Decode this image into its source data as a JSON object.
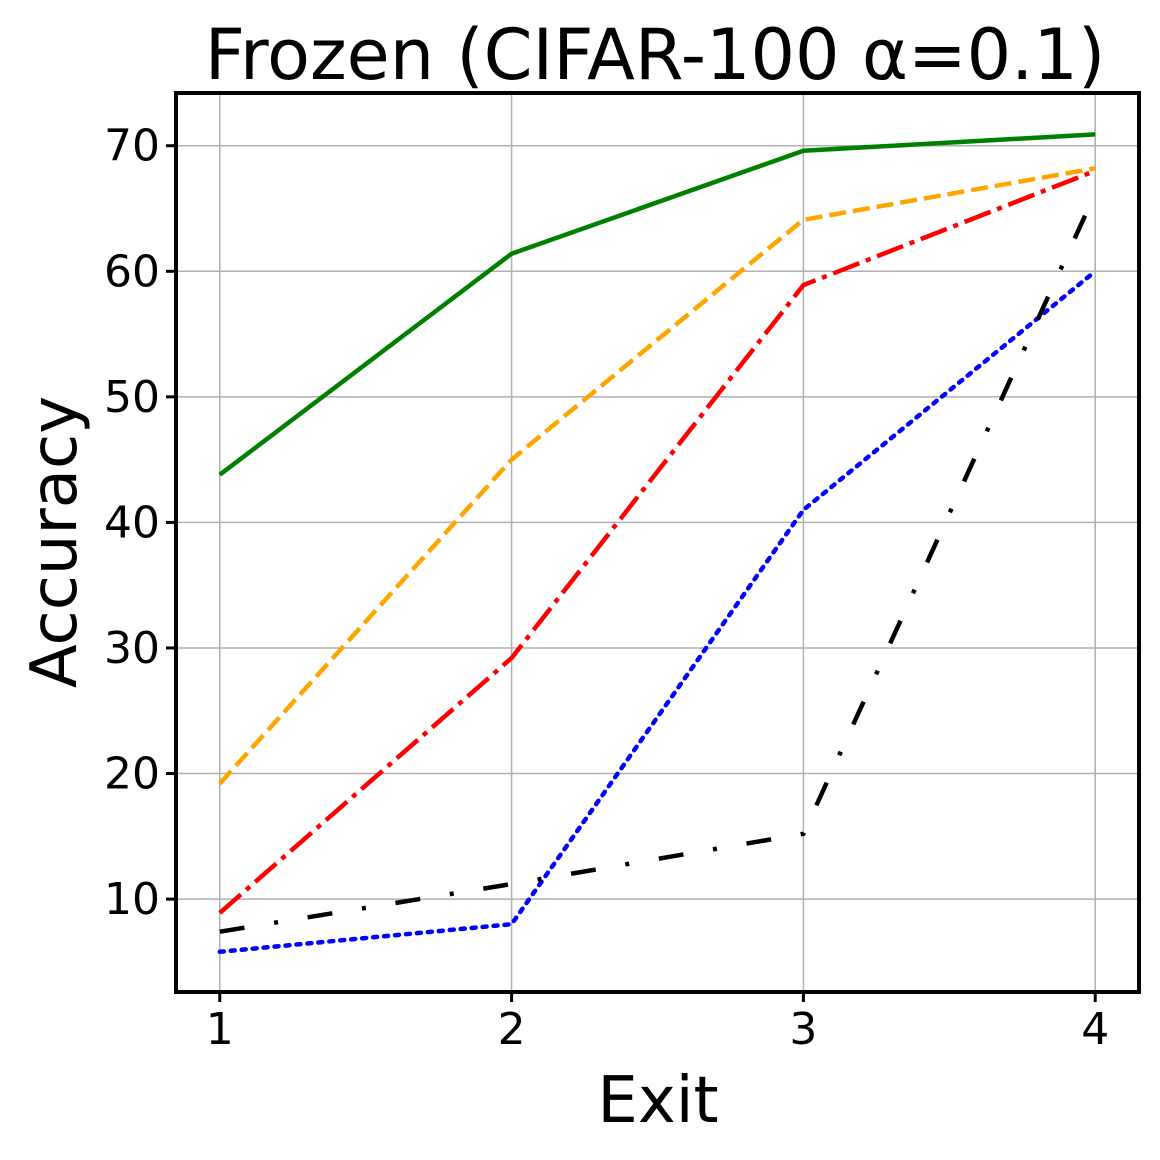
{
  "chart_data": {
    "type": "line",
    "title": "Frozen (CIFAR-100 α=0.1)",
    "xlabel": "Exit",
    "ylabel": "Accuracy",
    "x": [
      1,
      2,
      3,
      4
    ],
    "x_ticks": [
      "1",
      "2",
      "3",
      "4"
    ],
    "y_ticks": [
      "10",
      "20",
      "30",
      "40",
      "50",
      "60",
      "70"
    ],
    "xlim": [
      0.85,
      4.15
    ],
    "ylim": [
      2.6,
      74.2
    ],
    "grid": true,
    "series": [
      {
        "color": "#008000",
        "style": "solid",
        "values": [
          43.8,
          61.4,
          69.6,
          70.9
        ]
      },
      {
        "color": "#FFA500",
        "style": "dashed",
        "values": [
          19.2,
          45.0,
          64.1,
          68.2
        ]
      },
      {
        "color": "#FF0000",
        "style": "dashdot",
        "values": [
          8.9,
          29.2,
          58.9,
          68.0
        ]
      },
      {
        "color": "#0000FF",
        "style": "dotted",
        "values": [
          5.8,
          8.0,
          41.0,
          60.0
        ]
      },
      {
        "color": "#000000",
        "style": "loosely-dashdot",
        "values": [
          7.4,
          11.2,
          15.2,
          66.2
        ]
      }
    ]
  }
}
